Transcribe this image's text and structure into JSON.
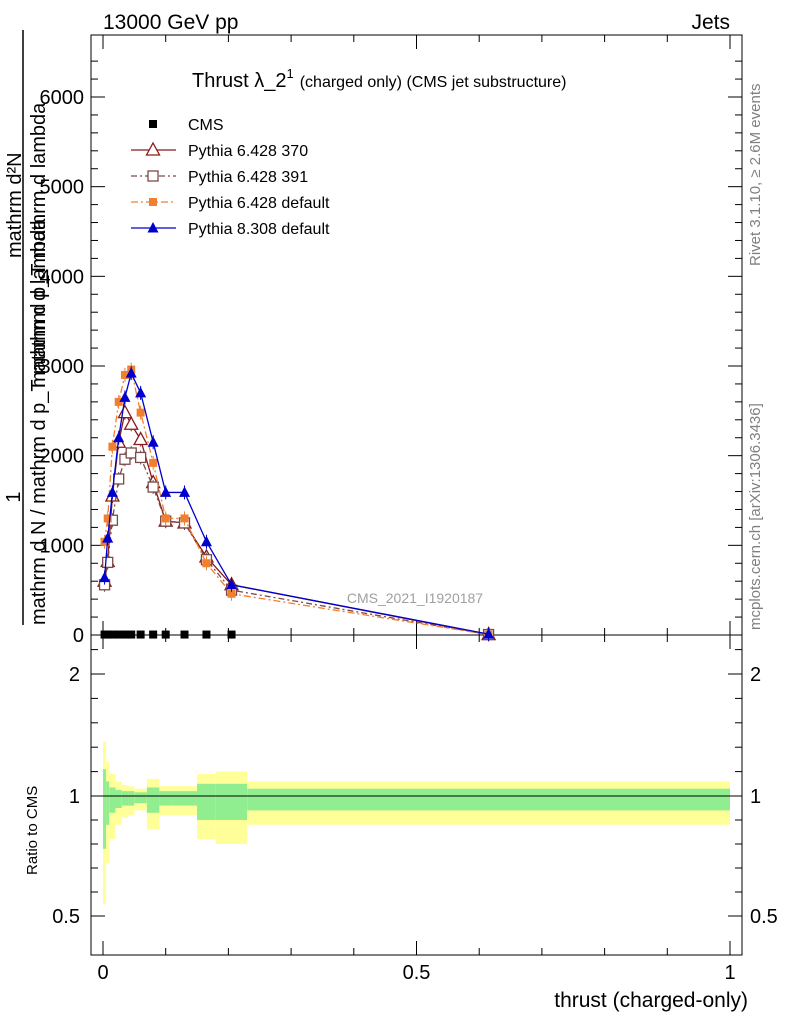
{
  "header": {
    "left": "13000 GeV pp",
    "right": "Jets"
  },
  "side_text": {
    "rivet": "Rivet 3.1.10, ≥ 2.6M events",
    "mcplots": "mcplots.cern.ch [arXiv:1306.3436]"
  },
  "watermark": "CMS_2021_I1920187",
  "ylabel": {
    "numerator": "1",
    "line1": "mathrm d N / mathrm d p",
    "line2": "mathrm d^{2}N",
    "line3": "mathrm d p_{T} mathrm d lambda",
    "raw_top": "mathrm d²N",
    "raw_mid": "mathrm d p_T mathrm d lambda",
    "raw_bot": "mathrm d N / mathrm d p_T mathrm d lambda"
  },
  "ratio_ylabel": "Ratio to CMS",
  "xlabel": "thrust (charged-only)",
  "chart_data": {
    "type": "line",
    "title_main": "Thrust λ_2",
    "title_sup": "1",
    "title_rest": "(charged only) (CMS jet substructure)",
    "xlim": [
      -0.02,
      1.0
    ],
    "ylim": [
      0,
      6600
    ],
    "ratio_ylim": [
      0.35,
      2.3
    ],
    "x_ticks": [
      {
        "v": 0,
        "label": "0"
      },
      {
        "v": 0.5,
        "label": "0.5"
      },
      {
        "v": 1,
        "label": "1"
      }
    ],
    "y_ticks": [
      {
        "v": 0,
        "label": "0"
      },
      {
        "v": 1000,
        "label": "1000"
      },
      {
        "v": 2000,
        "label": "2000"
      },
      {
        "v": 3000,
        "label": "3000"
      },
      {
        "v": 4000,
        "label": "4000"
      },
      {
        "v": 5000,
        "label": "5000"
      },
      {
        "v": 6000,
        "label": "6000"
      }
    ],
    "ratio_ticks": [
      {
        "v": 0.5,
        "label": "0.5"
      },
      {
        "v": 1,
        "label": "1"
      },
      {
        "v": 2,
        "label": "2"
      }
    ],
    "bin_edges": [
      0,
      0.005,
      0.01,
      0.02,
      0.03,
      0.04,
      0.05,
      0.07,
      0.09,
      0.11,
      0.15,
      0.18,
      0.23,
      1.0
    ],
    "series": [
      {
        "name": "CMS",
        "color": "#000000",
        "marker": "square-filled",
        "dash": "",
        "x": [
          0.0025,
          0.0075,
          0.015,
          0.025,
          0.035,
          0.045,
          0.06,
          0.08,
          0.1,
          0.13,
          0.165,
          0.205,
          0.615
        ],
        "values": [
          5,
          5,
          5,
          5,
          5,
          5,
          5,
          5,
          5,
          5,
          5,
          5,
          5
        ]
      },
      {
        "name": "Pythia 6.428 370",
        "color": "#8b1a1a",
        "marker": "triangle-open",
        "dash": "",
        "x": [
          0.0025,
          0.0075,
          0.015,
          0.025,
          0.035,
          0.045,
          0.06,
          0.08,
          0.1,
          0.13,
          0.165,
          0.205,
          0.615
        ],
        "values": [
          600,
          820,
          1550,
          2150,
          2480,
          2350,
          2180,
          1700,
          1270,
          1250,
          870,
          560,
          5
        ]
      },
      {
        "name": "Pythia 6.428 391",
        "color": "#7a4a4a",
        "marker": "square-open",
        "dash": "6,3,2,3",
        "x": [
          0.0025,
          0.0075,
          0.015,
          0.025,
          0.035,
          0.045,
          0.06,
          0.08,
          0.1,
          0.13,
          0.165,
          0.205,
          0.615
        ],
        "values": [
          560,
          810,
          1280,
          1740,
          1960,
          2030,
          1980,
          1650,
          1270,
          1250,
          840,
          500,
          5
        ]
      },
      {
        "name": "Pythia 6.428 default",
        "color": "#f08030",
        "marker": "square-filled",
        "dash": "7,3,2,3",
        "x": [
          0.0025,
          0.0075,
          0.015,
          0.025,
          0.035,
          0.045,
          0.06,
          0.08,
          0.1,
          0.13,
          0.165,
          0.205,
          0.615
        ],
        "values": [
          1040,
          1300,
          2100,
          2600,
          2900,
          2960,
          2480,
          1920,
          1300,
          1300,
          800,
          460,
          5
        ]
      },
      {
        "name": "Pythia 8.308 default",
        "color": "#0000cc",
        "marker": "triangle-filled",
        "dash": "",
        "x": [
          0.0025,
          0.0075,
          0.015,
          0.025,
          0.035,
          0.045,
          0.06,
          0.08,
          0.1,
          0.13,
          0.165,
          0.205,
          0.615
        ],
        "values": [
          640,
          1080,
          1590,
          2200,
          2650,
          2920,
          2700,
          2150,
          1590,
          1590,
          1040,
          560,
          10
        ]
      }
    ],
    "ratio_bands": {
      "inner_color": "#90ee90",
      "outer_color": "#ffff99",
      "inner_half_width": [
        0.22,
        0.12,
        0.07,
        0.05,
        0.04,
        0.04,
        0.03,
        0.07,
        0.04,
        0.04,
        0.1,
        0.1,
        0.06
      ],
      "outer_half_width": [
        0.45,
        0.28,
        0.18,
        0.12,
        0.09,
        0.08,
        0.06,
        0.14,
        0.08,
        0.08,
        0.18,
        0.2,
        0.12
      ]
    }
  }
}
